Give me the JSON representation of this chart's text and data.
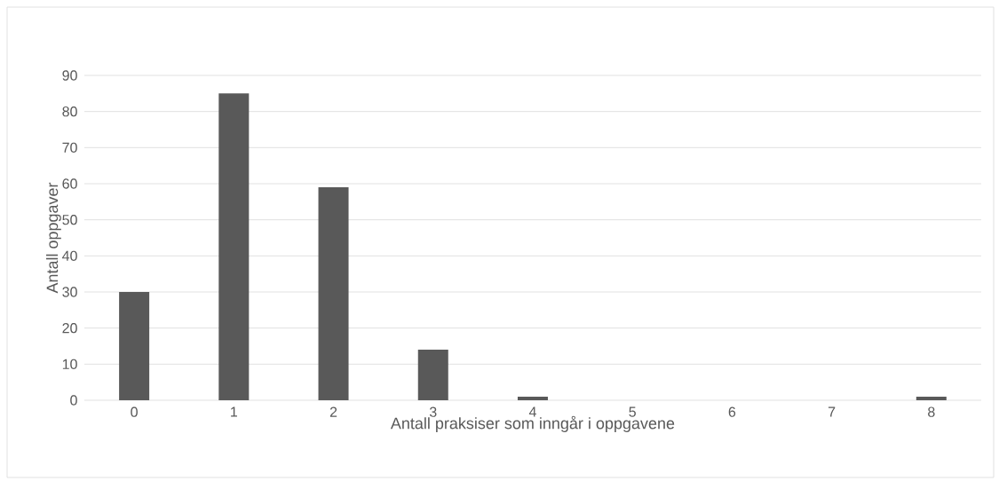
{
  "chart_data": {
    "type": "bar",
    "xlabel": "Antall praksiser som inngår i oppgavene",
    "ylabel": "Antall oppgaver",
    "categories": [
      "0",
      "1",
      "2",
      "3",
      "4",
      "5",
      "6",
      "7",
      "8"
    ],
    "values": [
      30,
      85,
      59,
      14,
      1,
      0,
      0,
      0,
      1
    ],
    "color": "#595959",
    "ylim": [
      0,
      90
    ],
    "yticks": [
      0,
      10,
      20,
      30,
      40,
      50,
      60,
      70,
      80,
      90
    ],
    "grid": "y"
  }
}
